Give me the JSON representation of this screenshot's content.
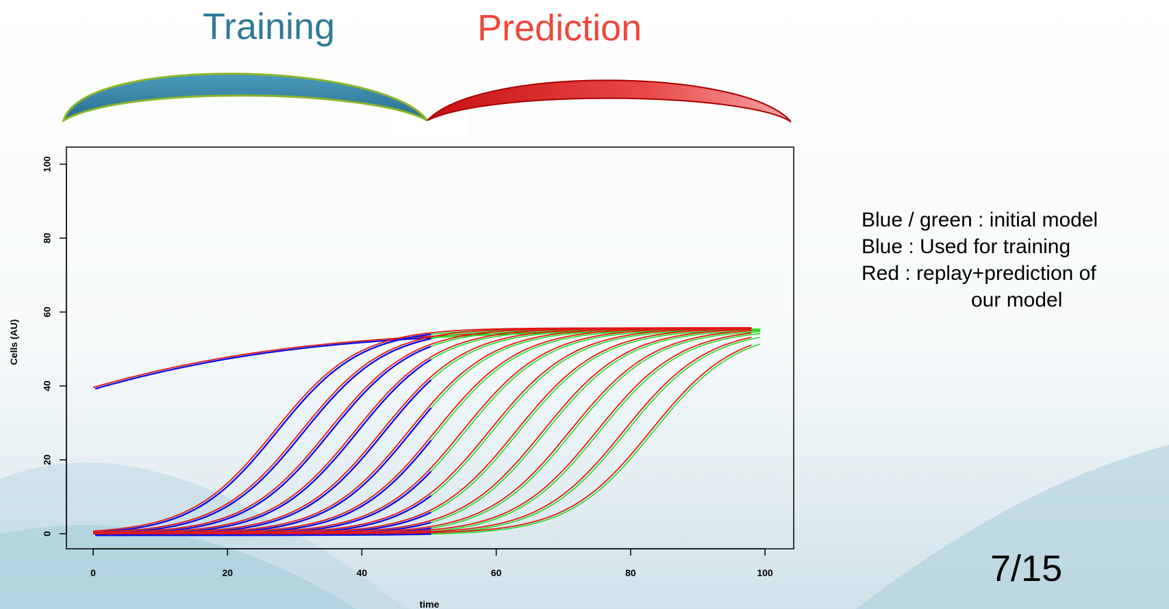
{
  "header": {
    "training_label": "Training",
    "prediction_label": "Prediction",
    "training_color": "#2f7a97",
    "prediction_color": "#f0463c"
  },
  "legend": {
    "line1": "Blue / green : initial model",
    "line2": "Blue : Used for training",
    "line3": "Red : replay+prediction of",
    "line4": "our model"
  },
  "slide_number": "7/15",
  "colors": {
    "blue": "#1010e0",
    "green": "#22dd22",
    "red": "#e01818"
  },
  "chart_data": {
    "type": "line",
    "title": "",
    "xlabel": "time",
    "ylabel": "Cells (AU)",
    "xlim": [
      0,
      100
    ],
    "ylim": [
      0,
      100
    ],
    "xticks": [
      0,
      20,
      40,
      60,
      80,
      100
    ],
    "yticks": [
      0,
      20,
      40,
      60,
      80,
      100
    ],
    "grid": false,
    "training_end": 50,
    "prediction_end": 98,
    "model": "logistic",
    "carrying_capacity": 55.7,
    "growth_rate": 0.16,
    "series": [
      {
        "x0": 0,
        "y0": 39.6
      },
      {
        "x0": 27,
        "y0": 0
      },
      {
        "x0": 31,
        "y0": 0
      },
      {
        "x0": 35,
        "y0": 0
      },
      {
        "x0": 39,
        "y0": 0
      },
      {
        "x0": 43,
        "y0": 0
      },
      {
        "x0": 47,
        "y0": 0
      },
      {
        "x0": 51,
        "y0": 0
      },
      {
        "x0": 55,
        "y0": 0
      },
      {
        "x0": 59,
        "y0": 0
      },
      {
        "x0": 63,
        "y0": 0
      },
      {
        "x0": 67,
        "y0": 0
      },
      {
        "x0": 71,
        "y0": 0
      },
      {
        "x0": 75,
        "y0": 0
      },
      {
        "x0": 79,
        "y0": 0
      },
      {
        "x0": 83,
        "y0": 0
      }
    ]
  }
}
